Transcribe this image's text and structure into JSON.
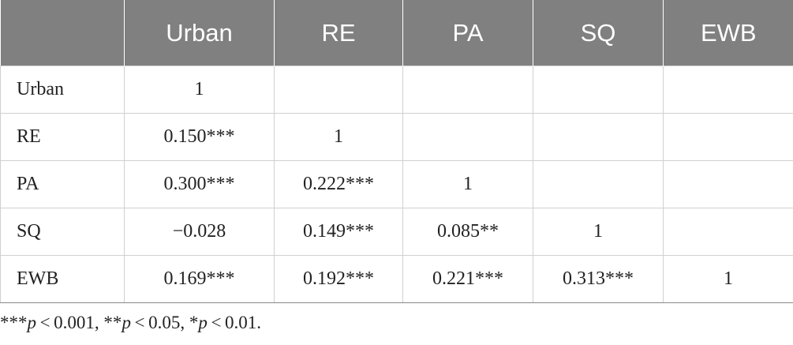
{
  "table": {
    "header": [
      "Urban",
      "RE",
      "PA",
      "SQ",
      "EWB"
    ],
    "rows": [
      [
        "Urban",
        "1",
        null,
        null,
        null,
        null
      ],
      [
        "RE",
        "0.150***",
        "1",
        null,
        null,
        null
      ],
      [
        "PA",
        "0.300***",
        "0.222***",
        "1",
        null,
        null
      ],
      [
        "SQ",
        "−0.028",
        "0.149***",
        "0.085**",
        "1",
        null
      ],
      [
        "EWB",
        "0.169***",
        "0.192***",
        "0.221***",
        "0.313***",
        "1"
      ]
    ]
  },
  "footnote": [
    "***",
    "p",
    " < 0.001, **",
    "p",
    " < 0.05, *",
    "p",
    " < 0.01."
  ]
}
